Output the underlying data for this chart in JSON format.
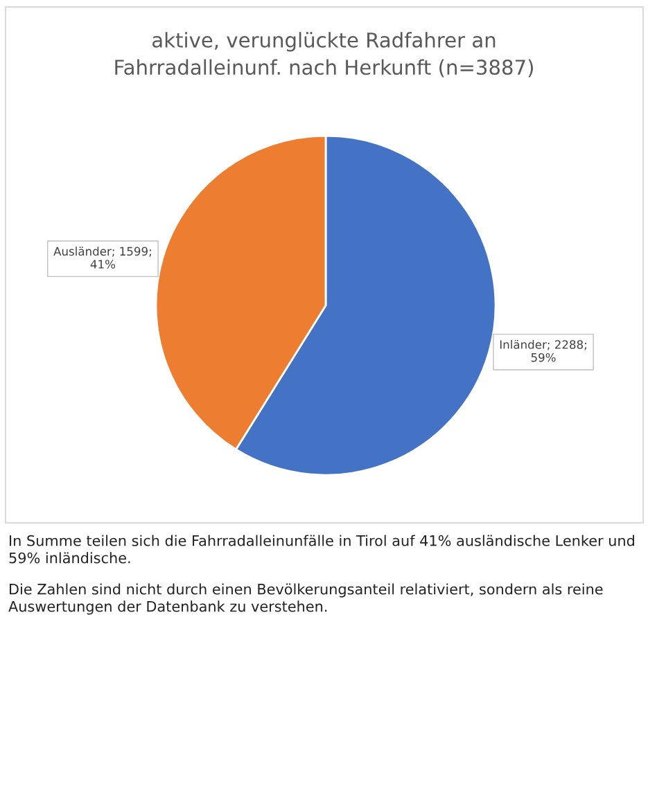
{
  "chart_data": {
    "type": "pie",
    "title": "aktive, verunglückte Radfahrer an\nFahrradalleinunf. nach Herkunft (n=3887)",
    "categories": [
      "Inländer",
      "Ausländer"
    ],
    "values": [
      2288,
      1599
    ],
    "colors": [
      "#4472c4",
      "#ed7d31"
    ],
    "value_labels": [
      "2288;\n59%",
      "1599;\n41%"
    ],
    "legend": false,
    "annotations": [
      "In Summe teilen sich die Fahrradalleinunfälle in Tirol auf 41% ausländische Lenker und 59% inländische.",
      "Die Zahlen sind nicht durch einen Bevölkerungsanteil relativiert, sondern als reine Auswertungen der Datenbank zu verstehen."
    ]
  }
}
